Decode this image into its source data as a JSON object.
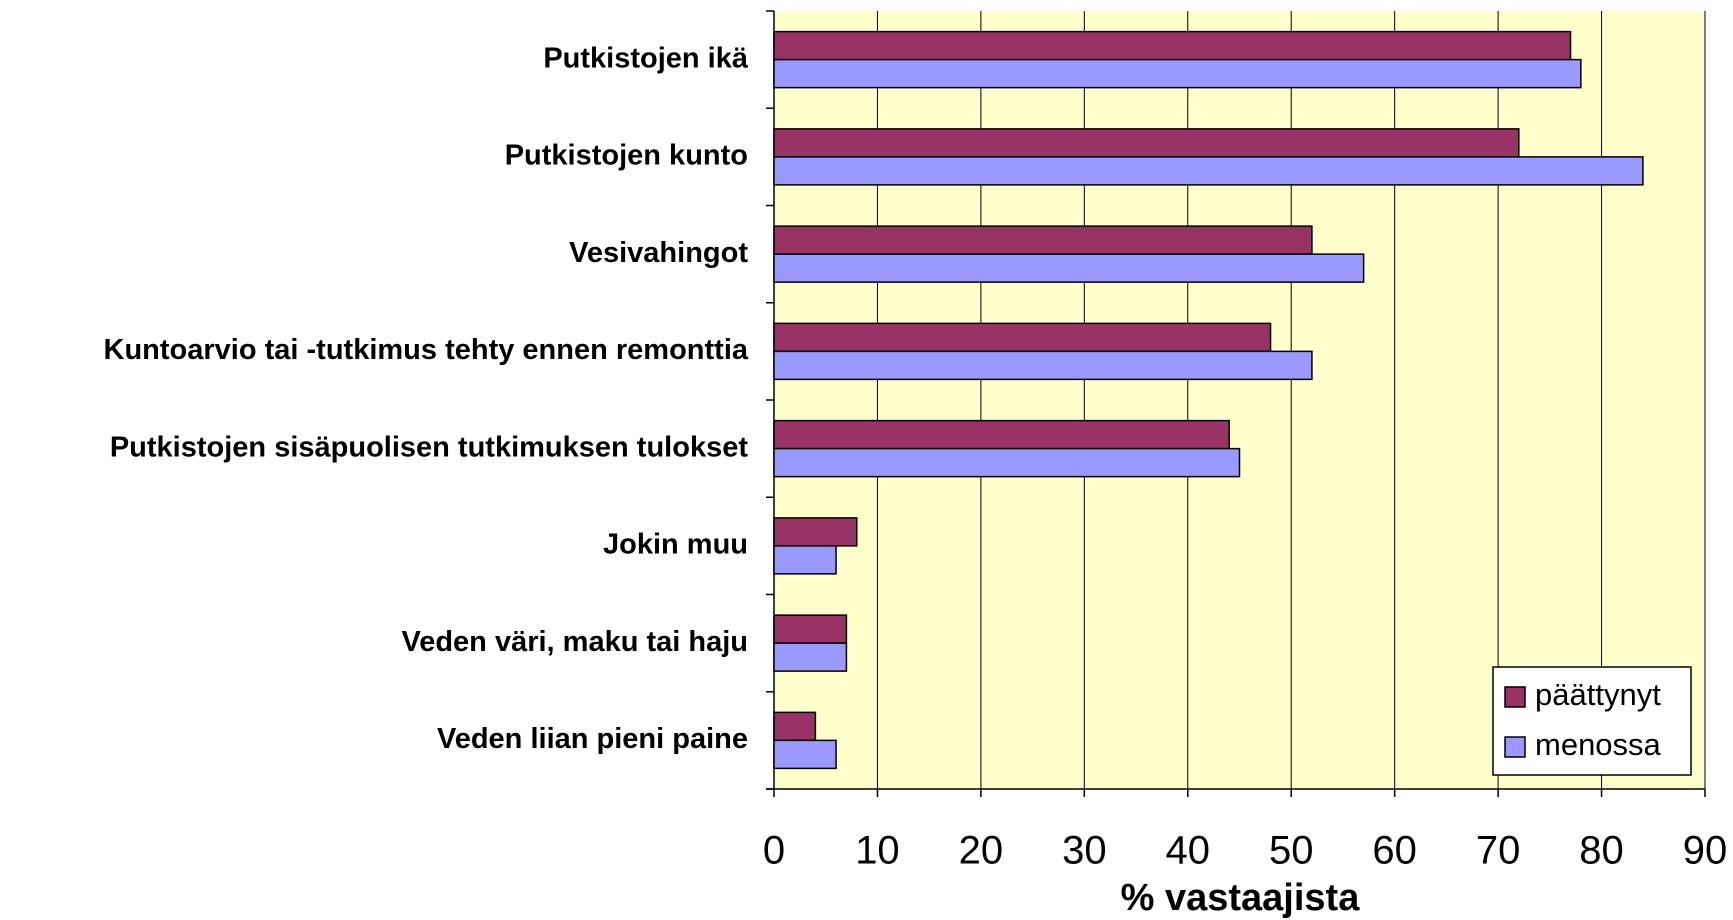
{
  "chart_data": {
    "type": "bar",
    "orientation": "horizontal",
    "categories": [
      "Putkistojen ikä",
      "Putkistojen kunto",
      "Vesivahingot",
      "Kuntoarvio tai -tutkimus tehty ennen remonttia",
      "Putkistojen sisäpuolisen tutkimuksen tulokset",
      "Jokin muu",
      "Veden väri, maku tai haju",
      "Veden liian pieni paine"
    ],
    "series": [
      {
        "name": "päättynyt",
        "color": "#993366",
        "values": [
          77,
          72,
          52,
          48,
          44,
          8,
          7,
          4
        ]
      },
      {
        "name": "menossa",
        "color": "#9999ff",
        "values": [
          78,
          84,
          57,
          52,
          45,
          6,
          7,
          6
        ]
      }
    ],
    "xlabel": "% vastaajista",
    "xlim": [
      0,
      90
    ],
    "xticks": [
      0,
      10,
      20,
      30,
      40,
      50,
      60,
      70,
      80,
      90
    ],
    "grid": true,
    "legend": "lower right",
    "background": "#ffffcc"
  }
}
